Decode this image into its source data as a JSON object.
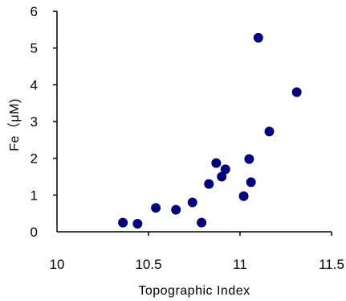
{
  "chart_data": {
    "type": "scatter",
    "title": "",
    "xlabel": "Topographic Index",
    "ylabel": "Fe（μM)",
    "xlim": [
      10,
      11.5
    ],
    "ylim": [
      0,
      6
    ],
    "xticks": [
      10,
      10.5,
      11,
      11.5
    ],
    "xtick_labels": [
      "10",
      "10.5",
      "11",
      "11.5"
    ],
    "yticks": [
      0,
      1,
      2,
      3,
      4,
      5,
      6
    ],
    "ytick_labels": [
      "0",
      "1",
      "2",
      "3",
      "4",
      "5",
      "6"
    ],
    "grid": false,
    "marker_color": "#00007f",
    "series": [
      {
        "points": [
          {
            "x": 10.36,
            "y": 0.25
          },
          {
            "x": 10.44,
            "y": 0.22
          },
          {
            "x": 10.54,
            "y": 0.65
          },
          {
            "x": 10.65,
            "y": 0.6
          },
          {
            "x": 10.74,
            "y": 0.8
          },
          {
            "x": 10.79,
            "y": 0.25
          },
          {
            "x": 10.83,
            "y": 1.3
          },
          {
            "x": 10.87,
            "y": 1.87
          },
          {
            "x": 10.9,
            "y": 1.5
          },
          {
            "x": 10.92,
            "y": 1.7
          },
          {
            "x": 11.02,
            "y": 0.97
          },
          {
            "x": 11.05,
            "y": 1.98
          },
          {
            "x": 11.06,
            "y": 1.35
          },
          {
            "x": 11.1,
            "y": 5.28
          },
          {
            "x": 11.16,
            "y": 2.73
          },
          {
            "x": 11.31,
            "y": 3.8
          }
        ]
      }
    ]
  }
}
